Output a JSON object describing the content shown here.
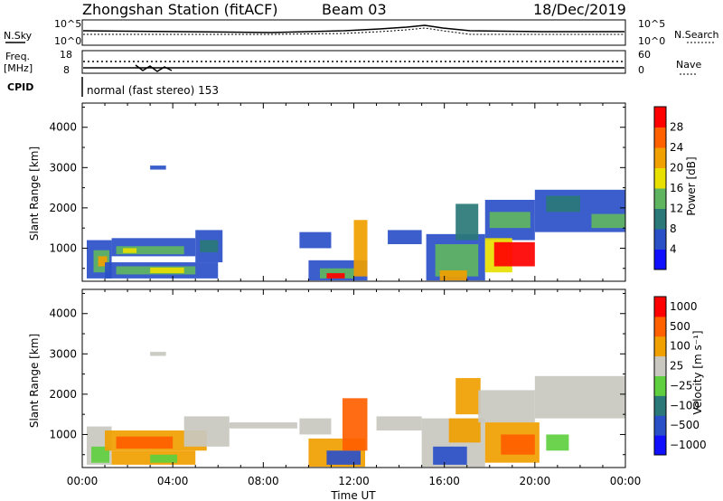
{
  "header": {
    "station": "Zhongshan Station (fitACF)",
    "beam": "Beam 03",
    "date": "18/Dec/2019"
  },
  "strip": {
    "nsky_label": "N.Sky",
    "nsearch_label": "N.Search",
    "noise_left_ticks": [
      "10^5",
      "10^0"
    ],
    "noise_right_ticks": [
      "10^5",
      "10^0"
    ],
    "freq_label_1": "Freq.",
    "freq_label_2": "[MHz]",
    "freq_ticks": [
      "18",
      "8"
    ],
    "nave_label": "Nave",
    "nave_ticks": [
      "60",
      "0"
    ],
    "cpid_label": "CPID",
    "cpid_text": "normal (fast stereo) 153"
  },
  "chart_data": [
    {
      "type": "heatmap",
      "panel": "power",
      "xlabel": "Time UT",
      "ylabel": "Slant Range [km]",
      "xticks": [
        "00:00",
        "04:00",
        "08:00",
        "12:00",
        "16:00",
        "20:00",
        "00:00"
      ],
      "xlim_hours": [
        0,
        24
      ],
      "ylim": [
        180,
        4600
      ],
      "yticks": [
        1000,
        2000,
        3000,
        4000
      ],
      "colorbar": {
        "label": "Power [dB]",
        "ticks": [
          "4",
          "8",
          "12",
          "16",
          "20",
          "24",
          "28"
        ],
        "colors": [
          "#1010ff",
          "#2a50c8",
          "#2a7878",
          "#5fb55f",
          "#e8e000",
          "#f0a000",
          "#ff6000",
          "#ff0000"
        ]
      },
      "regions": [
        {
          "t0": 0.2,
          "t1": 1.3,
          "r0": 250,
          "r1": 1200,
          "c": "#2a50c8"
        },
        {
          "t0": 0.5,
          "t1": 1.2,
          "r0": 400,
          "r1": 950,
          "c": "#5fb55f"
        },
        {
          "t0": 0.7,
          "t1": 1.1,
          "r0": 550,
          "r1": 800,
          "c": "#f0a000"
        },
        {
          "t0": 1.3,
          "t1": 5.0,
          "r0": 800,
          "r1": 1250,
          "c": "#2a50c8"
        },
        {
          "t0": 1.5,
          "t1": 4.5,
          "r0": 850,
          "r1": 1050,
          "c": "#5fb55f"
        },
        {
          "t0": 1.8,
          "t1": 2.4,
          "r0": 880,
          "r1": 1000,
          "c": "#e8e000"
        },
        {
          "t0": 1.0,
          "t1": 6.0,
          "r0": 250,
          "r1": 650,
          "c": "#2a50c8"
        },
        {
          "t0": 1.5,
          "t1": 5.0,
          "r0": 350,
          "r1": 550,
          "c": "#5fb55f"
        },
        {
          "t0": 3.0,
          "t1": 4.5,
          "r0": 380,
          "r1": 520,
          "c": "#e8e000"
        },
        {
          "t0": 5.0,
          "t1": 6.2,
          "r0": 650,
          "r1": 1450,
          "c": "#2a50c8"
        },
        {
          "t0": 5.2,
          "t1": 6.0,
          "r0": 900,
          "r1": 1200,
          "c": "#2a7878"
        },
        {
          "t0": 9.6,
          "t1": 11.0,
          "r0": 1000,
          "r1": 1400,
          "c": "#2a50c8"
        },
        {
          "t0": 10.0,
          "t1": 12.6,
          "r0": 200,
          "r1": 700,
          "c": "#2a50c8"
        },
        {
          "t0": 10.5,
          "t1": 12.0,
          "r0": 250,
          "r1": 500,
          "c": "#5fb55f"
        },
        {
          "t0": 10.8,
          "t1": 11.6,
          "r0": 250,
          "r1": 380,
          "c": "#ff0000"
        },
        {
          "t0": 12.0,
          "t1": 12.6,
          "r0": 300,
          "r1": 1700,
          "c": "#f0a000"
        },
        {
          "t0": 13.5,
          "t1": 15.0,
          "r0": 1100,
          "r1": 1450,
          "c": "#2a50c8"
        },
        {
          "t0": 15.2,
          "t1": 17.8,
          "r0": 200,
          "r1": 1350,
          "c": "#2a50c8"
        },
        {
          "t0": 15.6,
          "t1": 17.5,
          "r0": 300,
          "r1": 1100,
          "c": "#5fb55f"
        },
        {
          "t0": 15.8,
          "t1": 17.0,
          "r0": 200,
          "r1": 450,
          "c": "#f0a000"
        },
        {
          "t0": 16.5,
          "t1": 17.5,
          "r0": 1200,
          "r1": 2100,
          "c": "#2a7878"
        },
        {
          "t0": 17.8,
          "t1": 20.0,
          "r0": 1200,
          "r1": 2200,
          "c": "#2a50c8"
        },
        {
          "t0": 18.0,
          "t1": 19.8,
          "r0": 1500,
          "r1": 1900,
          "c": "#5fb55f"
        },
        {
          "t0": 17.8,
          "t1": 19.0,
          "r0": 400,
          "r1": 1250,
          "c": "#e8e000"
        },
        {
          "t0": 18.2,
          "t1": 20.0,
          "r0": 550,
          "r1": 1150,
          "c": "#ff0000"
        },
        {
          "t0": 20.0,
          "t1": 24.0,
          "r0": 1400,
          "r1": 2450,
          "c": "#2a50c8"
        },
        {
          "t0": 20.5,
          "t1": 22.0,
          "r0": 1900,
          "r1": 2300,
          "c": "#2a7878"
        },
        {
          "t0": 22.5,
          "t1": 24.0,
          "r0": 1500,
          "r1": 1850,
          "c": "#5fb55f"
        },
        {
          "t0": 3.0,
          "t1": 3.7,
          "r0": 2950,
          "r1": 3050,
          "c": "#2a50c8"
        }
      ]
    },
    {
      "type": "heatmap",
      "panel": "velocity",
      "xlabel": "Time UT",
      "ylabel": "Slant Range [km]",
      "xticks": [
        "00:00",
        "04:00",
        "08:00",
        "12:00",
        "16:00",
        "20:00",
        "00:00"
      ],
      "xlim_hours": [
        0,
        24
      ],
      "ylim": [
        180,
        4600
      ],
      "yticks": [
        1000,
        2000,
        3000,
        4000
      ],
      "colorbar": {
        "label": "Velocity [m s⁻¹]",
        "ticks": [
          "1000",
          "500",
          "100",
          "25",
          "−25",
          "−100",
          "−500",
          "−1000"
        ],
        "colors": [
          "#1010ff",
          "#2a50c8",
          "#2a7878",
          "#5fcf3f",
          "#c8c8c0",
          "#f0a000",
          "#ff6000",
          "#ff0000"
        ]
      },
      "regions": [
        {
          "t0": 0.2,
          "t1": 1.3,
          "r0": 250,
          "r1": 1200,
          "c": "#c8c8c0"
        },
        {
          "t0": 0.4,
          "t1": 1.2,
          "r0": 300,
          "r1": 700,
          "c": "#5fcf3f"
        },
        {
          "t0": 1.0,
          "t1": 5.5,
          "r0": 600,
          "r1": 1100,
          "c": "#f0a000"
        },
        {
          "t0": 1.5,
          "t1": 4.0,
          "r0": 650,
          "r1": 950,
          "c": "#ff6000"
        },
        {
          "t0": 1.3,
          "t1": 5.0,
          "r0": 250,
          "r1": 600,
          "c": "#f0a000"
        },
        {
          "t0": 3.0,
          "t1": 4.2,
          "r0": 300,
          "r1": 500,
          "c": "#5fcf3f"
        },
        {
          "t0": 4.5,
          "t1": 6.5,
          "r0": 700,
          "r1": 1450,
          "c": "#c8c8c0"
        },
        {
          "t0": 6.5,
          "t1": 9.5,
          "r0": 1150,
          "r1": 1300,
          "c": "#c8c8c0"
        },
        {
          "t0": 9.6,
          "t1": 11.0,
          "r0": 1000,
          "r1": 1400,
          "c": "#c8c8c0"
        },
        {
          "t0": 10.0,
          "t1": 12.5,
          "r0": 200,
          "r1": 900,
          "c": "#f0a000"
        },
        {
          "t0": 10.8,
          "t1": 12.3,
          "r0": 250,
          "r1": 600,
          "c": "#2a50c8"
        },
        {
          "t0": 11.5,
          "t1": 12.6,
          "r0": 600,
          "r1": 1900,
          "c": "#ff6000"
        },
        {
          "t0": 13.0,
          "t1": 15.0,
          "r0": 1100,
          "r1": 1450,
          "c": "#c8c8c0"
        },
        {
          "t0": 15.0,
          "t1": 17.8,
          "r0": 200,
          "r1": 1400,
          "c": "#c8c8c0"
        },
        {
          "t0": 15.5,
          "t1": 17.0,
          "r0": 250,
          "r1": 700,
          "c": "#2a50c8"
        },
        {
          "t0": 16.2,
          "t1": 17.6,
          "r0": 800,
          "r1": 1400,
          "c": "#f0a000"
        },
        {
          "t0": 16.5,
          "t1": 17.6,
          "r0": 1500,
          "r1": 2400,
          "c": "#f0a000"
        },
        {
          "t0": 17.5,
          "t1": 20.0,
          "r0": 1300,
          "r1": 2100,
          "c": "#c8c8c0"
        },
        {
          "t0": 17.8,
          "t1": 20.2,
          "r0": 300,
          "r1": 1300,
          "c": "#f0a000"
        },
        {
          "t0": 18.5,
          "t1": 20.0,
          "r0": 500,
          "r1": 1000,
          "c": "#ff6000"
        },
        {
          "t0": 20.0,
          "t1": 24.0,
          "r0": 1400,
          "r1": 2450,
          "c": "#c8c8c0"
        },
        {
          "t0": 20.5,
          "t1": 21.5,
          "r0": 600,
          "r1": 1000,
          "c": "#5fcf3f"
        },
        {
          "t0": 3.0,
          "t1": 3.7,
          "r0": 2950,
          "r1": 3050,
          "c": "#c8c8c0"
        }
      ]
    }
  ]
}
